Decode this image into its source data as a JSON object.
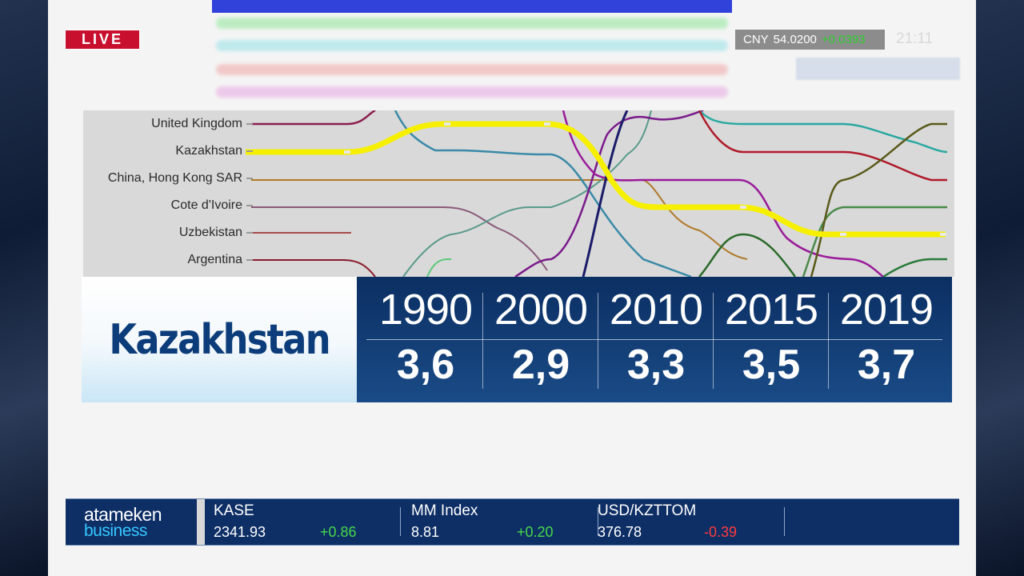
{
  "live_label": "LIVE",
  "fx": {
    "pair": "CNY",
    "rate": "54.0200",
    "change": "+0.0393"
  },
  "clock": "21:11",
  "chart_data": {
    "type": "line",
    "title": "",
    "categories": [
      "United Kingdom",
      "Kazakhstan",
      "China, Hong Kong SAR",
      "Cote d'Ivoire",
      "Uzbekistan",
      "Argentina"
    ],
    "highlight": "Kazakhstan",
    "x": [
      "1990",
      "2000",
      "2010",
      "2015",
      "2019"
    ],
    "series": [
      {
        "name": "Kazakhstan",
        "values": [
          3.6,
          2.9,
          3.3,
          3.5,
          3.7
        ]
      }
    ],
    "colors": {
      "United Kingdom": "#8b1e4e",
      "Kazakhstan": "#f6f000",
      "China, Hong Kong SAR": "#b07a2a",
      "Cote d'Ivoire": "#8a5a7a",
      "Uzbekistan": "#a94a4a",
      "Argentina": "#8b1e2e"
    }
  },
  "info": {
    "country": "Kazakhstan",
    "years": [
      "1990",
      "2000",
      "2010",
      "2015",
      "2019"
    ],
    "values": [
      "3,6",
      "2,9",
      "3,3",
      "3,5",
      "3,7"
    ]
  },
  "ticker": {
    "brand_top": "atameken",
    "brand_bottom": "business",
    "items": [
      {
        "name": "KASE",
        "value": "2341.93",
        "change": "+0.86",
        "dir": "pos"
      },
      {
        "name": "MM Index",
        "value": "8.81",
        "change": "+0.20",
        "dir": "pos"
      },
      {
        "name": "USD/KZTTOM",
        "value": "376.78",
        "change": "-0.39",
        "dir": "neg"
      }
    ]
  }
}
